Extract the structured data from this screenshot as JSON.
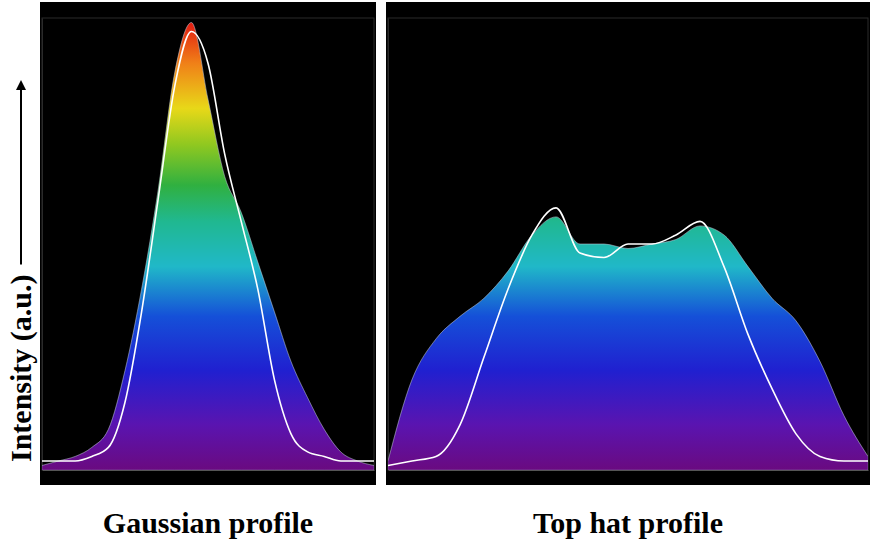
{
  "chart_data": [
    {
      "type": "area",
      "xlabel": "Gaussian profile",
      "ylabel": "Intensity (a.u.)",
      "x": [
        0,
        5,
        10,
        15,
        20,
        25,
        30,
        35,
        40,
        45,
        50,
        55,
        60,
        65,
        70,
        75,
        80,
        85,
        90,
        95,
        100
      ],
      "series": [
        {
          "type": "area",
          "values": [
            1,
            2,
            3,
            5,
            9,
            22,
            40,
            62,
            88,
            99,
            82,
            65,
            57,
            46,
            35,
            24,
            16,
            9,
            4,
            2,
            1
          ]
        },
        {
          "type": "line",
          "color": "#ffffff",
          "values": [
            2,
            2,
            2,
            3,
            5,
            15,
            35,
            60,
            85,
            97,
            90,
            70,
            55,
            40,
            20,
            8,
            4,
            3,
            2,
            2,
            2
          ]
        }
      ],
      "xlim": [
        0,
        100
      ],
      "ylim": [
        0,
        100
      ],
      "xticks": [],
      "yticks": [],
      "tick_labels": false
    },
    {
      "type": "area",
      "xlabel": "Top hat profile",
      "x": [
        0,
        5,
        10,
        15,
        20,
        25,
        30,
        35,
        40,
        45,
        50,
        55,
        60,
        65,
        70,
        75,
        80,
        85,
        90,
        95,
        100
      ],
      "series": [
        {
          "type": "area",
          "values": [
            2,
            20,
            29,
            34,
            38,
            44,
            52,
            56,
            50,
            50,
            49,
            50,
            51,
            54,
            52,
            45,
            38,
            33,
            24,
            12,
            3
          ]
        },
        {
          "type": "line",
          "color": "#ffffff",
          "values": [
            1,
            2,
            3,
            10,
            25,
            40,
            52,
            58,
            48,
            47,
            50,
            50,
            52,
            55,
            45,
            30,
            18,
            8,
            3,
            2,
            2
          ]
        }
      ],
      "xlim": [
        0,
        100
      ],
      "ylim": [
        0,
        100
      ],
      "xticks": [],
      "yticks": [],
      "tick_labels": false
    }
  ]
}
